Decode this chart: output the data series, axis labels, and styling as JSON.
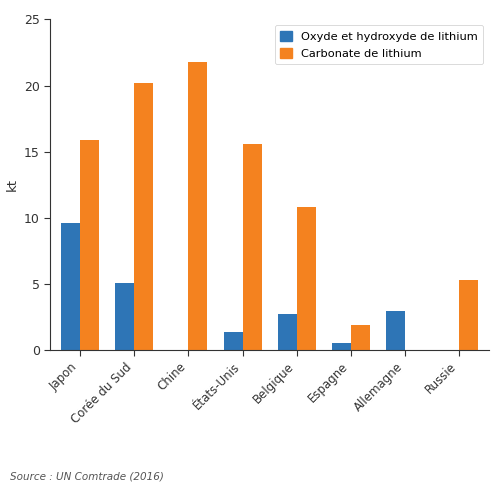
{
  "categories": [
    "Japon",
    "Corée du Sud",
    "Chine",
    "États-Unis",
    "Belgique",
    "Espagne",
    "Allemagne",
    "Russie"
  ],
  "oxyde": [
    9.6,
    5.1,
    0.0,
    1.35,
    2.7,
    0.55,
    2.95,
    0.0
  ],
  "carbonate": [
    15.9,
    20.2,
    21.8,
    15.6,
    10.8,
    1.9,
    0.0,
    5.3
  ],
  "color_oxyde": "#2E75B6",
  "color_carbonate": "#F4821F",
  "ylabel": "kt",
  "ylim": [
    0,
    25
  ],
  "yticks": [
    0,
    5,
    10,
    15,
    20,
    25
  ],
  "legend_oxyde": "Oxyde et hydroxyde de lithium",
  "legend_carbonate": "Carbonate de lithium",
  "source": "Source : UN Comtrade (2016)",
  "background_color": "#FFFFFF",
  "bar_width": 0.35,
  "spine_color": "#333333"
}
